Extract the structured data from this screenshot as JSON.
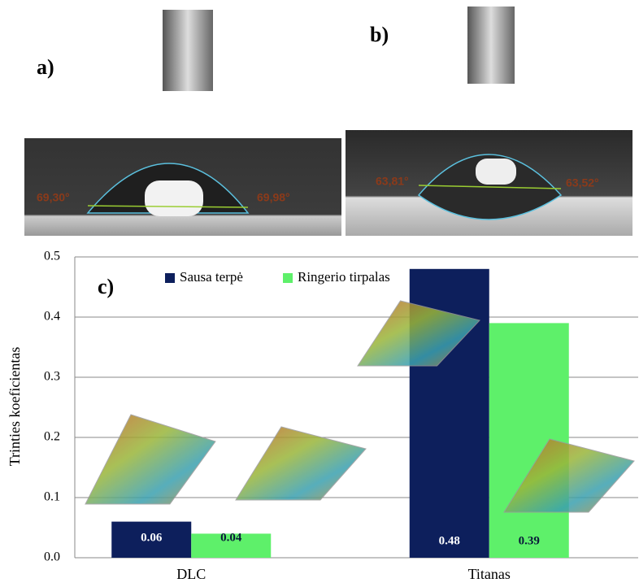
{
  "panels": {
    "a": {
      "label": "a)",
      "left_angle": "69,30°",
      "right_angle": "69,98°"
    },
    "b": {
      "label": "b)",
      "left_angle": "63,81°",
      "right_angle": "63,52°"
    }
  },
  "chart_data": {
    "type": "bar",
    "panel_label": "c)",
    "y_label": "Trinties koeficientas",
    "categories": [
      "DLC",
      "Titanas"
    ],
    "series": [
      {
        "name": "Sausa terpė",
        "color": "#0d1f5c",
        "values": [
          0.06,
          0.48
        ]
      },
      {
        "name": "Ringerio tirpalas",
        "color": "#5ef06a",
        "values": [
          0.04,
          0.39
        ]
      }
    ],
    "ylim": [
      0,
      0.5
    ],
    "yticks": [
      {
        "value": 0,
        "label": "0.0"
      },
      0.1,
      0.2,
      0.3,
      0.4,
      0.5
    ],
    "grid": true
  }
}
